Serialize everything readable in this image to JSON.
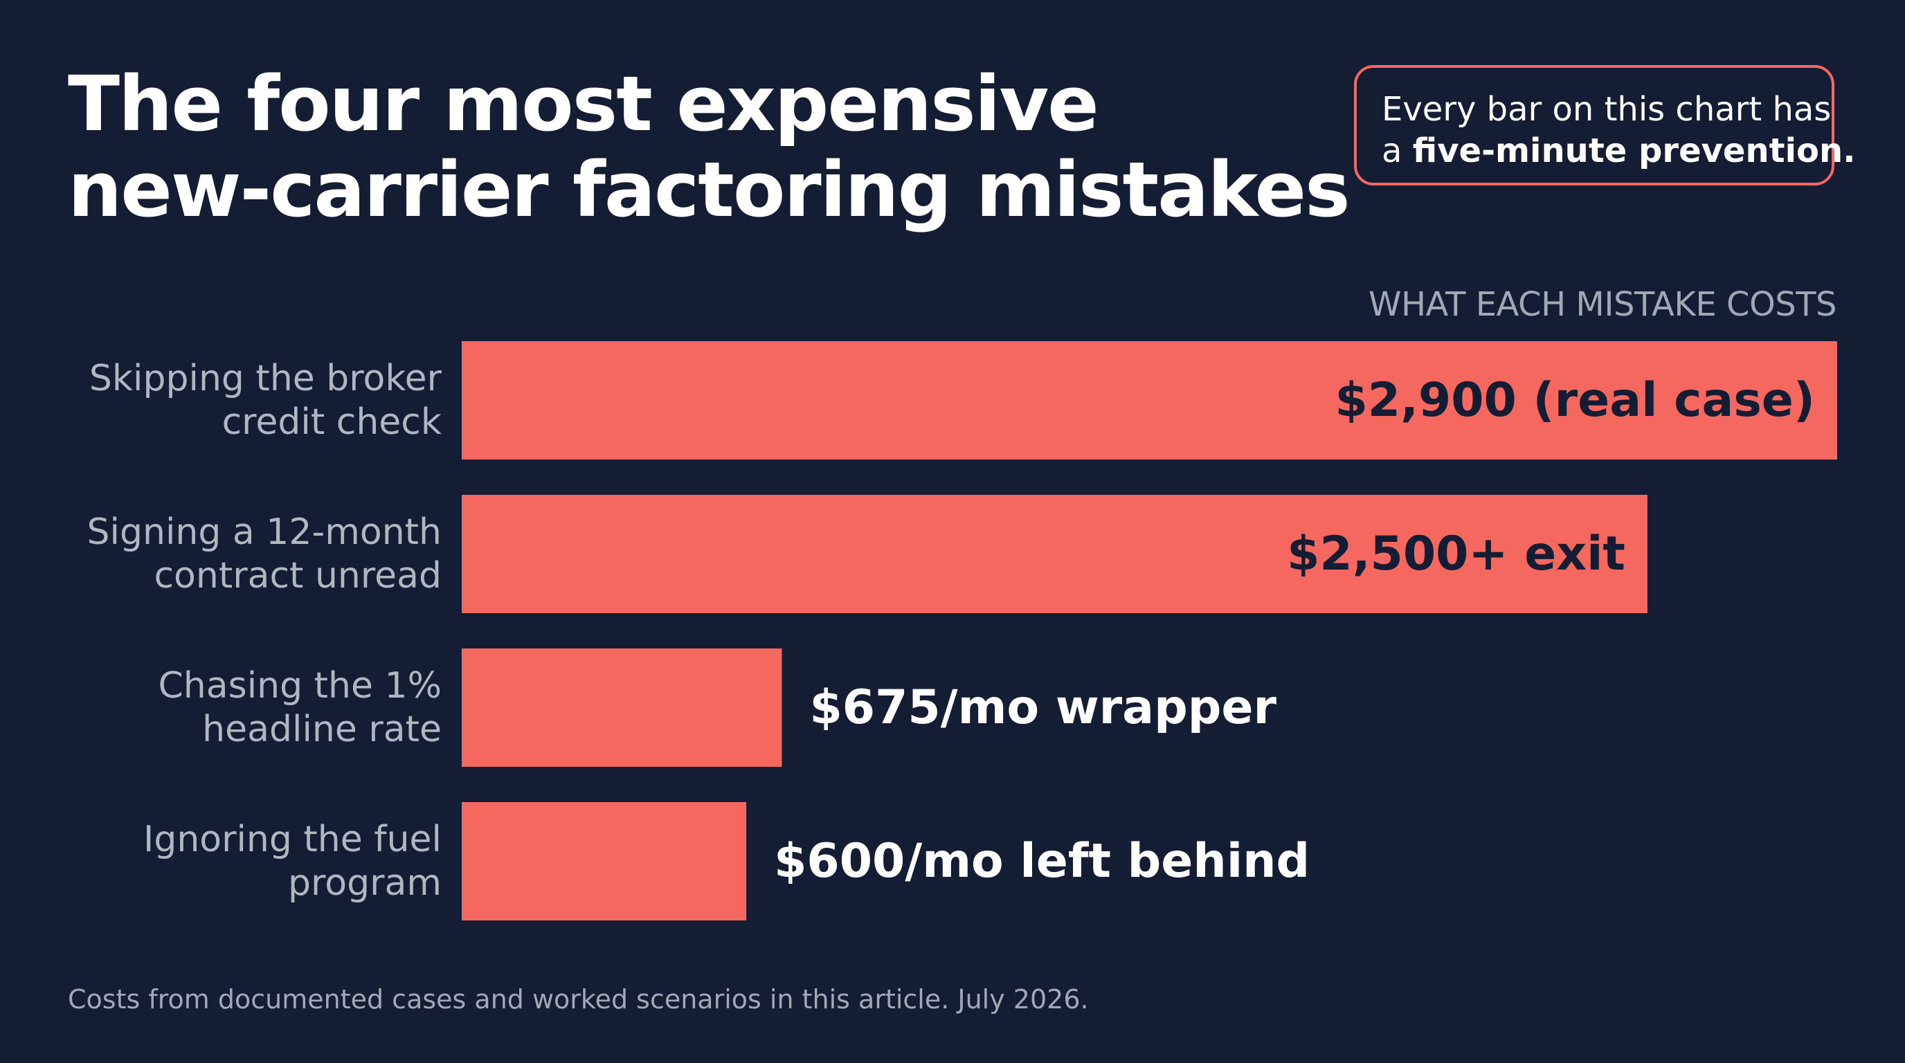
{
  "header": {
    "title_line1": "The four most expensive",
    "title_line2": "new-carrier factoring mistakes"
  },
  "callout": {
    "line1": "Every bar on this chart has",
    "line2_prefix": "a ",
    "line2_bold": "five-minute prevention."
  },
  "footer": {
    "note": "Costs from documented cases and worked scenarios in this article. July 2026."
  },
  "colors": {
    "background": "#141d33",
    "bar": "#f4685f",
    "accent_border": "#f4685f",
    "label_on_bar": "#141d33",
    "label_off_bar": "#ffffff",
    "category_text": "#b2b6bf"
  },
  "chart_data": {
    "type": "bar",
    "orientation": "horizontal",
    "title": "The four most expensive new-carrier factoring mistakes",
    "value_axis_label": "WHAT EACH MISTAKE COSTS",
    "categories": [
      [
        "Skipping the broker",
        "credit check"
      ],
      [
        "Signing a 12-month",
        "contract unread"
      ],
      [
        "Chasing the 1%",
        "headline rate"
      ],
      [
        "Ignoring the fuel",
        "program"
      ]
    ],
    "values": [
      2900,
      2500,
      675,
      600
    ],
    "data_labels": [
      "$2,900 (real case)",
      "$2,500+ exit",
      "$675/mo wrapper",
      "$600/mo left behind"
    ],
    "xlim": [
      0,
      2900
    ],
    "grid": false,
    "legend": "none"
  }
}
